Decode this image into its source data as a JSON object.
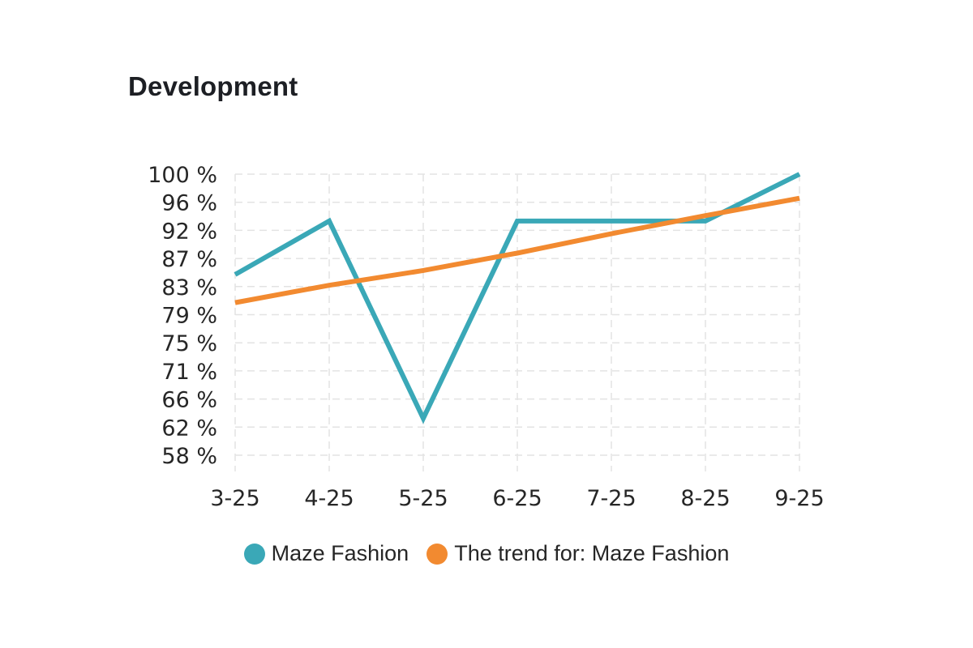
{
  "chart_data": {
    "type": "line",
    "title": "Development",
    "categories": [
      "3-25",
      "4-25",
      "5-25",
      "6-25",
      "7-25",
      "8-25",
      "9-25"
    ],
    "y_ticks": [
      "100 %",
      "96 %",
      "92 %",
      "87 %",
      "83 %",
      "79 %",
      "75 %",
      "71 %",
      "66 %",
      "62 %",
      "58 %"
    ],
    "ylim": [
      58,
      100
    ],
    "grid": true,
    "legend_position": "bottom",
    "series": [
      {
        "name": "Maze Fashion",
        "color": "#3aa8b7",
        "values": [
          85,
          93,
          63.5,
          93,
          93,
          93,
          100
        ]
      },
      {
        "name": "The trend for: Maze Fashion",
        "color": "#f28a30",
        "values": [
          80.8,
          83.4,
          85.6,
          88.2,
          91.1,
          93.8,
          96.4
        ]
      }
    ]
  }
}
